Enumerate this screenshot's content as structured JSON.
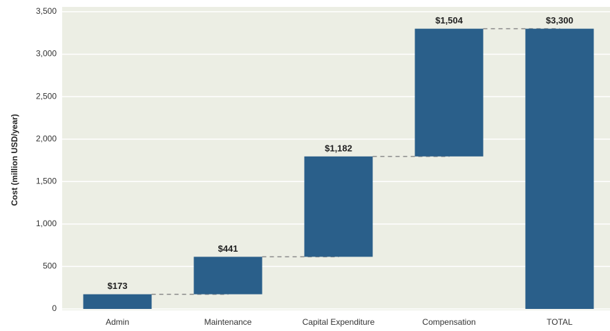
{
  "chart_data": {
    "type": "waterfall",
    "y_label": "Cost (million USD/year)",
    "categories": [
      "Admin",
      "Maintenance",
      "Capital Expenditure",
      "Compensation",
      "TOTAL"
    ],
    "values": [
      173,
      441,
      1182,
      1504,
      3300
    ],
    "value_labels": [
      "$173",
      "$441",
      "$1,182",
      "$1,504",
      "$3,300"
    ],
    "color": "#2a5f8a",
    "ylim": [
      0,
      3500
    ],
    "yticks": [
      0,
      500,
      {
        "value": 1000,
        "label": "1,000"
      },
      {
        "value": 1500,
        "label": "1,500"
      },
      {
        "value": 2000,
        "label": "2,000"
      },
      {
        "value": 2500,
        "label": "2,500"
      },
      {
        "value": 3000,
        "label": "3,000"
      },
      {
        "value": 3500,
        "label": "3,500"
      }
    ],
    "grid": true
  }
}
